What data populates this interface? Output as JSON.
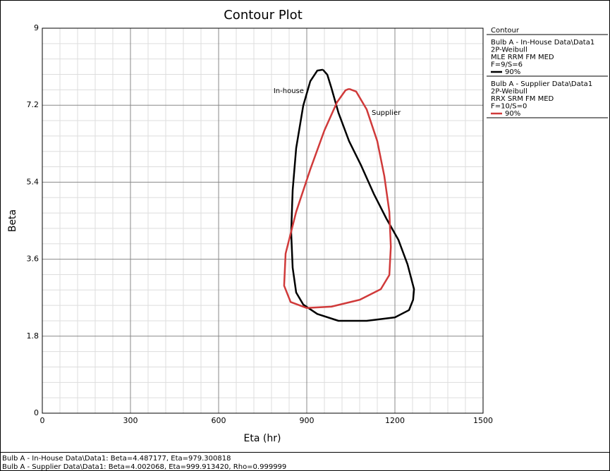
{
  "chart_data": {
    "type": "contour",
    "title": "Contour Plot",
    "x_label": "Eta (hr)",
    "y_label": "Beta",
    "xlim": [
      0,
      1500
    ],
    "xticks": [
      0,
      300,
      600,
      900,
      1200,
      1500
    ],
    "ylim": [
      0,
      9
    ],
    "yticks": [
      0,
      1.8,
      3.6,
      5.4,
      7.2,
      9
    ],
    "grid": true,
    "legend_title": "Contour",
    "series": [
      {
        "name": "90%",
        "color": "#000000",
        "info": [
          "Bulb A - In-House Data\\Data1",
          "2P-Weibull",
          "MLE RRM FM MED",
          "F=9/S=6"
        ],
        "annotation": "In-house",
        "x": [
          955,
          970,
          984,
          1008,
          1044,
          1085,
          1128,
          1171,
          1212,
          1243,
          1265,
          1262,
          1248,
          1200,
          1104,
          1008,
          936,
          888,
          864,
          852,
          847,
          852,
          864,
          888,
          912,
          936,
          955
        ],
        "values": [
          8.03,
          7.91,
          7.6,
          7.02,
          6.36,
          5.79,
          5.13,
          4.55,
          4.05,
          3.48,
          2.9,
          2.65,
          2.41,
          2.24,
          2.16,
          2.16,
          2.32,
          2.54,
          2.82,
          3.4,
          4.22,
          5.21,
          6.2,
          7.19,
          7.76,
          8.01,
          8.03
        ]
      },
      {
        "name": "90%",
        "color": "#d03a3a",
        "info": [
          "Bulb A - Supplier Data\\Data1",
          "2P-Weibull",
          "RRX SRM FM MED",
          "F=10/S=0"
        ],
        "annotation": "Supplier",
        "x": [
          1044,
          1068,
          1104,
          1140,
          1164,
          1181,
          1186,
          1181,
          1152,
          1080,
          984,
          900,
          845,
          823,
          828,
          864,
          912,
          960,
          1003,
          1032,
          1044
        ],
        "values": [
          7.58,
          7.52,
          7.1,
          6.36,
          5.54,
          4.71,
          3.89,
          3.23,
          2.9,
          2.65,
          2.49,
          2.46,
          2.6,
          2.98,
          3.73,
          4.71,
          5.7,
          6.61,
          7.27,
          7.55,
          7.58
        ]
      }
    ],
    "footer": [
      "Bulb A - In-House Data\\Data1: Beta=4.487177, Eta=979.300818",
      "Bulb A - Supplier Data\\Data1: Beta=4.002068, Eta=999.913420, Rho=0.999999"
    ]
  }
}
